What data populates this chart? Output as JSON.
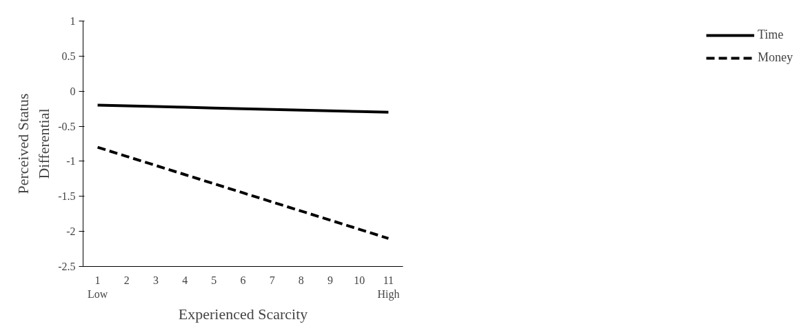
{
  "chart_data": {
    "type": "line",
    "xlabel": "Experienced Scarcity",
    "ylabel": "Perceived Status\nDifferential",
    "categories": [
      "1",
      "2",
      "3",
      "4",
      "5",
      "6",
      "7",
      "8",
      "9",
      "10",
      "11"
    ],
    "series": [
      {
        "name": "Time",
        "color": "#000000",
        "line_style": "solid",
        "values": [
          -0.2,
          -0.21,
          -0.22,
          -0.23,
          -0.24,
          -0.25,
          -0.26,
          -0.27,
          -0.28,
          -0.29,
          -0.3
        ]
      },
      {
        "name": "Money",
        "color": "#000000",
        "line_style": "dashed",
        "values": [
          -0.8,
          -0.93,
          -1.06,
          -1.19,
          -1.32,
          -1.45,
          -1.58,
          -1.71,
          -1.84,
          -1.97,
          -2.1
        ]
      }
    ],
    "annotations": [
      "Low",
      "High"
    ],
    "ylim": [
      -2.5,
      1
    ],
    "yticks": [
      -2.5,
      -2,
      -1.5,
      -1,
      -0.5,
      0,
      0.5,
      1
    ],
    "grid": false,
    "legend": "right",
    "marker": "none"
  }
}
